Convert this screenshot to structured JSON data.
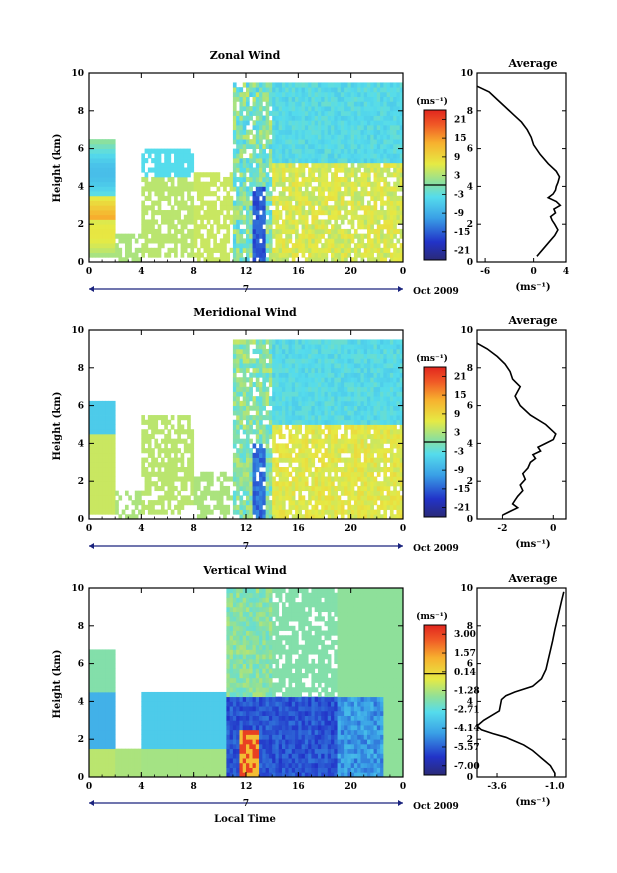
{
  "chart_data": [
    {
      "type": "heatmap",
      "title": "Zonal Wind",
      "ylabel": "Height (km)",
      "xlim": [
        0,
        24
      ],
      "ylim": [
        0,
        10
      ],
      "xticks": [
        "0",
        "4",
        "8",
        "12",
        "16",
        "20",
        "0"
      ],
      "yticks": [
        "0",
        "2",
        "4",
        "6",
        "8",
        "10"
      ],
      "date_label": "Oct 2009",
      "day_label": "7",
      "colorbar": {
        "unit": "(ms⁻¹)",
        "ticks": [
          "21",
          "15",
          "9",
          "3",
          "-3",
          "-9",
          "-15",
          "-21"
        ],
        "range": [
          -24,
          24
        ]
      },
      "average": {
        "title": "Average",
        "xlabel": "(ms⁻¹)",
        "xticks": [
          "-6",
          "0",
          "4"
        ],
        "xlim": [
          -7,
          4
        ],
        "profile_x": [
          -7.0,
          -5.5,
          -4.5,
          -3.5,
          -2.5,
          -1.5,
          -0.8,
          -0.3,
          0.0,
          0.8,
          1.8,
          2.8,
          3.2,
          3.0,
          2.8,
          2.7,
          2.4,
          1.8,
          2.8,
          3.3,
          2.5,
          2.7,
          2.1,
          2.3,
          2.6,
          3.0,
          2.6,
          2.0,
          1.2,
          0.4
        ],
        "profile_h": [
          9.3,
          9.0,
          8.6,
          8.2,
          7.8,
          7.4,
          7.0,
          6.6,
          6.2,
          5.7,
          5.2,
          4.8,
          4.5,
          4.2,
          4.0,
          3.8,
          3.6,
          3.4,
          3.2,
          3.0,
          2.8,
          2.6,
          2.4,
          2.2,
          2.0,
          1.7,
          1.4,
          1.1,
          0.7,
          0.3
        ]
      }
    },
    {
      "type": "heatmap",
      "title": "Meridional Wind",
      "ylabel": "Height (km)",
      "xlim": [
        0,
        24
      ],
      "ylim": [
        0,
        10
      ],
      "xticks": [
        "0",
        "4",
        "8",
        "12",
        "16",
        "20",
        "0"
      ],
      "yticks": [
        "0",
        "2",
        "4",
        "6",
        "8",
        "10"
      ],
      "date_label": "Oct 2009",
      "day_label": "7",
      "colorbar": {
        "unit": "(ms⁻¹)",
        "ticks": [
          "21",
          "15",
          "9",
          "3",
          "-3",
          "-9",
          "-15",
          "-21"
        ],
        "range": [
          -24,
          24
        ]
      },
      "average": {
        "title": "Average",
        "xlabel": "(ms⁻¹)",
        "xticks": [
          "-2",
          "0"
        ],
        "xlim": [
          -3,
          0.5
        ],
        "profile_x": [
          -3.0,
          -2.6,
          -2.2,
          -1.9,
          -1.7,
          -1.6,
          -1.3,
          -1.5,
          -1.3,
          -0.9,
          -0.3,
          0.1,
          0.0,
          -0.3,
          -0.6,
          -0.5,
          -0.8,
          -0.7,
          -0.9,
          -1.0,
          -1.2,
          -1.1,
          -1.3,
          -1.2,
          -1.4,
          -1.5,
          -1.6,
          -1.4,
          -1.7,
          -2.0
        ],
        "profile_h": [
          9.3,
          9.0,
          8.6,
          8.2,
          7.8,
          7.4,
          7.0,
          6.5,
          6.0,
          5.5,
          5.0,
          4.5,
          4.2,
          4.0,
          3.8,
          3.6,
          3.4,
          3.2,
          3.0,
          2.7,
          2.4,
          2.1,
          1.8,
          1.5,
          1.2,
          1.0,
          0.8,
          0.6,
          0.4,
          0.2
        ]
      }
    },
    {
      "type": "heatmap",
      "title": "Vertical Wind",
      "ylabel": "Height (km)",
      "xlabel": "Local Time",
      "xlim": [
        0,
        24
      ],
      "ylim": [
        0,
        10
      ],
      "xticks": [
        "0",
        "4",
        "8",
        "12",
        "16",
        "20",
        "0"
      ],
      "yticks": [
        "0",
        "2",
        "4",
        "6",
        "8",
        "10"
      ],
      "date_label": "Oct 2009",
      "day_label": "7",
      "colorbar": {
        "unit": "(ms⁻¹)",
        "ticks": [
          "3.00",
          "1.57",
          "0.14",
          "-1.28",
          "-2.71",
          "-4.14",
          "-5.57",
          "-7.00"
        ],
        "range": [
          -7.7,
          3.7
        ]
      },
      "average": {
        "title": "Average",
        "xlabel": "(ms⁻¹)",
        "xticks": [
          "-3.6",
          "-1.0"
        ],
        "xlim": [
          -4.5,
          -0.5
        ],
        "profile_x": [
          -0.6,
          -0.7,
          -0.8,
          -0.9,
          -1.0,
          -1.1,
          -1.2,
          -1.3,
          -1.4,
          -1.6,
          -2.0,
          -2.8,
          -3.2,
          -3.4,
          -3.5,
          -4.2,
          -4.5,
          -4.3,
          -3.8,
          -3.2,
          -2.8,
          -2.4,
          -2.0,
          -1.8,
          -1.6,
          -1.4,
          -1.2,
          -1.1,
          -1.0,
          -1.0
        ],
        "profile_h": [
          9.8,
          9.3,
          8.8,
          8.3,
          7.8,
          7.2,
          6.7,
          6.2,
          5.7,
          5.2,
          4.8,
          4.5,
          4.3,
          4.1,
          3.5,
          3.0,
          2.7,
          2.5,
          2.3,
          2.1,
          1.9,
          1.7,
          1.4,
          1.2,
          1.0,
          0.8,
          0.6,
          0.4,
          0.2,
          0.05
        ]
      }
    }
  ]
}
